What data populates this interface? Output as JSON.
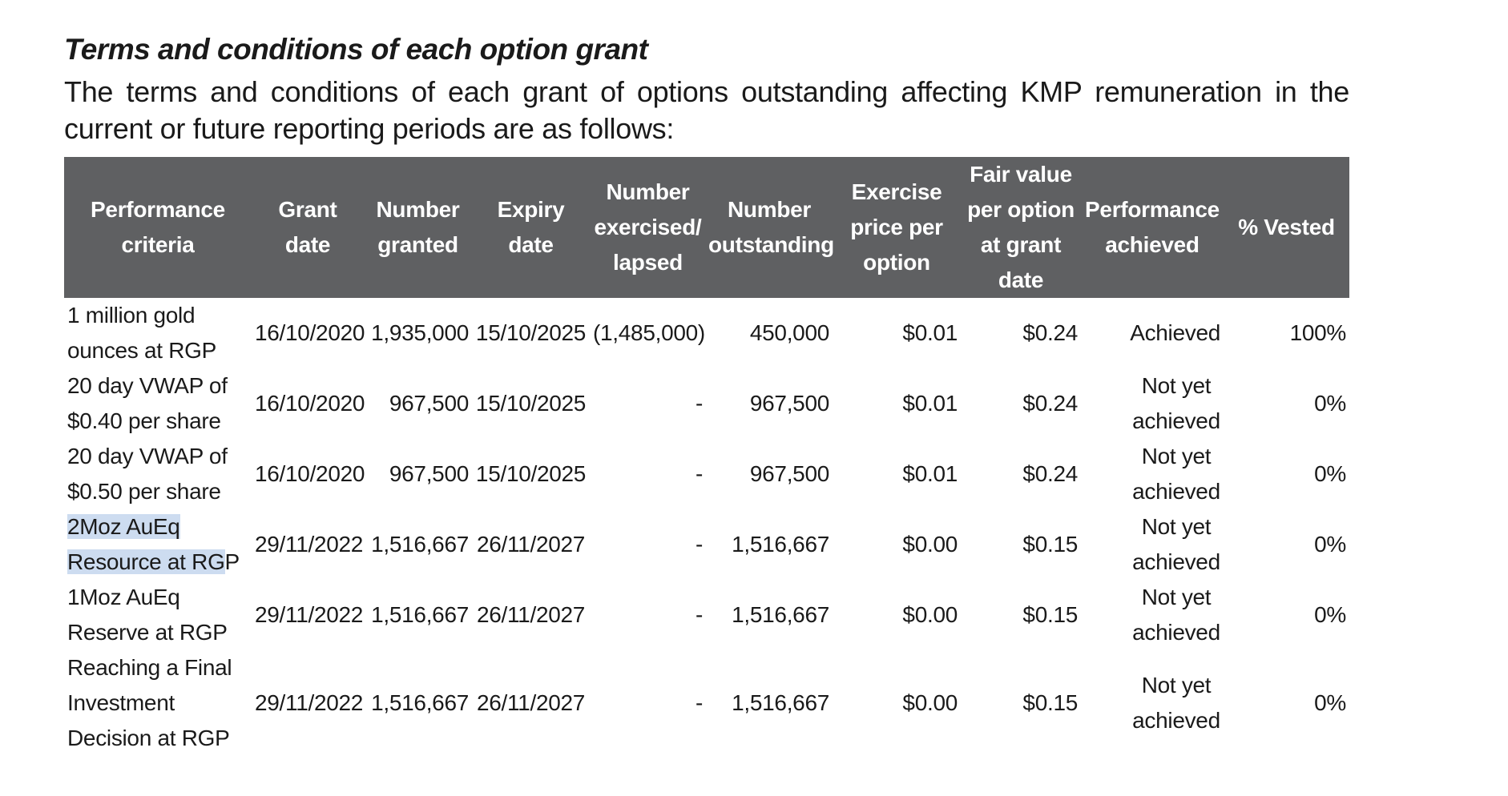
{
  "heading": "Terms and conditions of each option grant",
  "intro": "The terms and conditions of each grant of options outstanding affecting KMP remuneration in the current or future reporting periods are as follows:",
  "table": {
    "headers": [
      "Performance criteria",
      "Grant date",
      "Number granted",
      "Expiry date",
      "Number exercised/ lapsed",
      "Number outstanding",
      "Exercise price per option",
      "Fair value per option at grant date",
      "Performance achieved",
      "% Vested"
    ],
    "rows": [
      {
        "criteria": "1 million gold ounces at RGP",
        "grant_date": "16/10/2020",
        "granted": "1,935,000",
        "expiry": "15/10/2025",
        "exercised": "(1,485,000)",
        "outstanding": "450,000",
        "exercise_price": "$0.01",
        "fair_value": "$0.24",
        "achieved": "Achieved",
        "vested": "100%"
      },
      {
        "criteria": "20 day VWAP of $0.40 per share",
        "grant_date": "16/10/2020",
        "granted": "967,500",
        "expiry": "15/10/2025",
        "exercised": "-",
        "outstanding": "967,500",
        "exercise_price": "$0.01",
        "fair_value": "$0.24",
        "achieved": "Not yet achieved",
        "vested": "0%"
      },
      {
        "criteria": "20 day VWAP of $0.50 per share",
        "grant_date": "16/10/2020",
        "granted": "967,500",
        "expiry": "15/10/2025",
        "exercised": "-",
        "outstanding": "967,500",
        "exercise_price": "$0.01",
        "fair_value": "$0.24",
        "achieved": "Not yet achieved",
        "vested": "0%"
      },
      {
        "criteria_highlighted": "2Moz AuEq Resource at RG",
        "criteria_rest": "P",
        "grant_date": "29/11/2022",
        "granted": "1,516,667",
        "expiry": "26/11/2027",
        "exercised": "-",
        "outstanding": "1,516,667",
        "exercise_price": "$0.00",
        "fair_value": "$0.15",
        "achieved": "Not yet achieved",
        "vested": "0%"
      },
      {
        "criteria": "1Moz AuEq Reserve at RGP",
        "grant_date": "29/11/2022",
        "granted": "1,516,667",
        "expiry": "26/11/2027",
        "exercised": "-",
        "outstanding": "1,516,667",
        "exercise_price": "$0.00",
        "fair_value": "$0.15",
        "achieved": "Not yet achieved",
        "vested": "0%"
      },
      {
        "criteria": "Reaching a Final Investment Decision at RGP",
        "grant_date": "29/11/2022",
        "granted": "1,516,667",
        "expiry": "26/11/2027",
        "exercised": "-",
        "outstanding": "1,516,667",
        "exercise_price": "$0.00",
        "fair_value": "$0.15",
        "achieved": "Not yet achieved",
        "vested": "0%"
      }
    ]
  },
  "colors": {
    "header_bg": "#5f6062",
    "selection_highlight": "#cddcf0"
  }
}
